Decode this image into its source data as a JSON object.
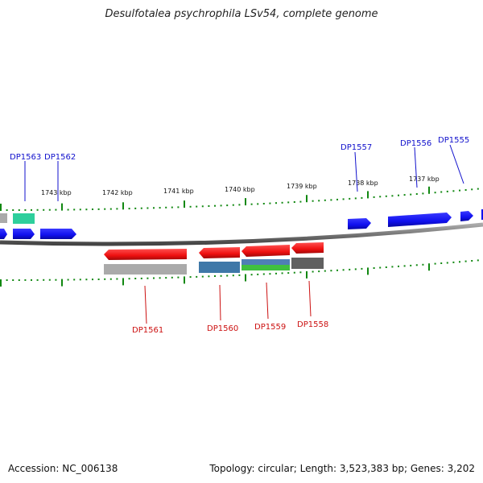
{
  "title": "Desulfotalea psychrophila LSv54, complete genome",
  "footer": {
    "accession": "Accession: NC_006138",
    "summary": "Topology: circular; Length: 3,523,383 bp; Genes: 3,202"
  },
  "colors": {
    "forward_gene": "#1010ee",
    "reverse_gene": "#ee1010",
    "tick": "#118811",
    "backbone": "#777777",
    "forward_label": "#1010cc",
    "reverse_label": "#cc1010",
    "feature_gray": "#aaaaaa",
    "feature_teal": "#2ecf9c",
    "feature_steelblue": "#3f78a8",
    "feature_green": "#40c040",
    "feature_darkgray": "#606060"
  },
  "scale_labels": [
    "1743 kbp",
    "1742 kbp",
    "1741 kbp",
    "1740 kbp",
    "1739 kbp",
    "1738 kbp",
    "1737 kbp"
  ],
  "forward_labels": [
    "DP1563",
    "DP1562",
    "DP1557",
    "DP1556",
    "DP1555"
  ],
  "reverse_labels": [
    "DP1561",
    "DP1560",
    "DP1559",
    "DP1558"
  ]
}
